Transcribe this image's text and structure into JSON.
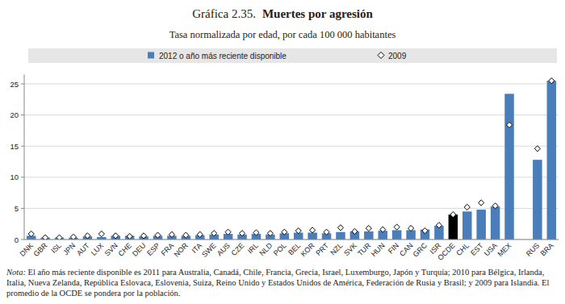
{
  "chart_data": {
    "type": "bar",
    "title": "Gráfica 2.35.",
    "title_bold": "Muertes por agresión",
    "subtitle": "Tasa normalizada por edad, por cada 100 000 habitantes",
    "note_label": "Nota:",
    "note": "El año más reciente disponible es 2011 para Australia, Canadá, Chile, Francia, Grecia, Israel, Luxemburgo, Japón y Turquía; 2010 para Bélgica, Irlanda, Italia, Nueva Zelanda, República Eslovaca, Eslovenia, Suiza, Reino Unido y Estados Unidos de América, Federación de Rusia y Brasil; y 2009 para Islandia. El promedio de la OCDE se pondera por la población.",
    "categories": [
      "DNK",
      "GBR",
      "ISL",
      "JPN",
      "AUT",
      "LUX",
      "SVN",
      "CHE",
      "DEU",
      "ESP",
      "FRA",
      "NOR",
      "ITA",
      "SWE",
      "AUS",
      "CZE",
      "IRL",
      "NLD",
      "POL",
      "BEL",
      "KOR",
      "PRT",
      "NZL",
      "SVK",
      "TUR",
      "HUN",
      "FIN",
      "CAN",
      "GRC",
      "ISR",
      "OCDE",
      "CHL",
      "EST",
      "USA",
      "MEX",
      null,
      "RUS",
      "BRA"
    ],
    "series": [
      {
        "name": "2012 o año más reciente disponible",
        "type": "bar",
        "color": "#4a7ebb",
        "colors": [
          "#4a7ebb",
          "#4a7ebb",
          "#4a7ebb",
          "#4a7ebb",
          "#4a7ebb",
          "#4a7ebb",
          "#4a7ebb",
          "#4a7ebb",
          "#4a7ebb",
          "#4a7ebb",
          "#4a7ebb",
          "#4a7ebb",
          "#4a7ebb",
          "#4a7ebb",
          "#4a7ebb",
          "#4a7ebb",
          "#4a7ebb",
          "#4a7ebb",
          "#4a7ebb",
          "#4a7ebb",
          "#4a7ebb",
          "#4a7ebb",
          "#4a7ebb",
          "#4a7ebb",
          "#4a7ebb",
          "#4a7ebb",
          "#4a7ebb",
          "#4a7ebb",
          "#4a7ebb",
          "#4a7ebb",
          "#000000",
          "#4a7ebb",
          "#4a7ebb",
          "#4a7ebb",
          "#4a7ebb",
          null,
          "#4a7ebb",
          "#4a7ebb"
        ],
        "values": [
          0.6,
          0.3,
          0.3,
          0.3,
          0.5,
          0.4,
          0.6,
          0.6,
          0.5,
          0.6,
          0.6,
          0.6,
          0.7,
          0.8,
          0.9,
          0.8,
          0.9,
          0.8,
          1.0,
          1.1,
          1.1,
          1.0,
          1.2,
          1.3,
          1.3,
          1.4,
          1.5,
          1.5,
          1.6,
          2.2,
          4.0,
          4.5,
          4.8,
          5.3,
          23.4,
          null,
          12.8,
          25.5
        ]
      },
      {
        "name": "2009",
        "type": "scatter",
        "marker": "diamond",
        "color": "#ffffff",
        "values": [
          0.9,
          0.3,
          0.3,
          0.4,
          0.6,
          0.9,
          0.6,
          0.5,
          0.6,
          0.7,
          0.8,
          0.7,
          0.8,
          1.0,
          1.2,
          1.0,
          1.1,
          1.0,
          1.2,
          1.4,
          1.5,
          1.2,
          1.9,
          1.3,
          1.8,
          1.6,
          2.0,
          1.8,
          1.4,
          2.3,
          4.0,
          5.2,
          5.9,
          5.4,
          18.4,
          null,
          14.6,
          25.5
        ]
      }
    ],
    "ylim": [
      0,
      26.5
    ],
    "yticks": [
      0,
      5,
      10,
      15,
      20,
      25
    ],
    "grid": true,
    "legend": "top"
  }
}
